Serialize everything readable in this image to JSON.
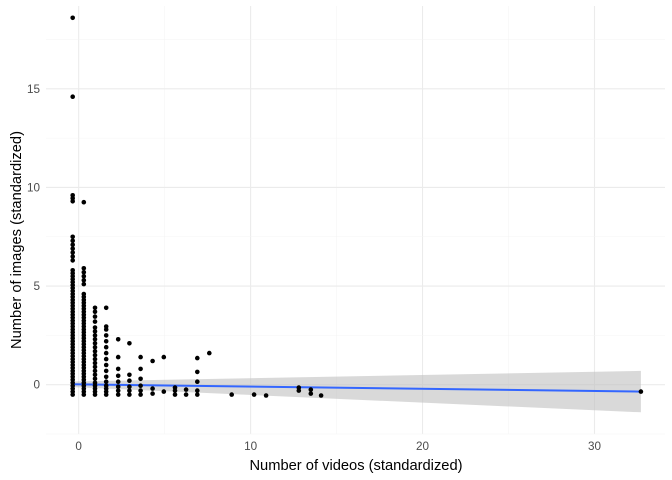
{
  "chart_data": {
    "type": "scatter",
    "title": "",
    "xlabel": "Number of videos (standardized)",
    "ylabel": "Number of images (standardized)",
    "xlim": [
      -1.9,
      34.1
    ],
    "ylim": [
      -2.5,
      19.2
    ],
    "x_ticks": [
      0,
      10,
      20,
      30
    ],
    "y_ticks": [
      0,
      5,
      10,
      15
    ],
    "grid": true,
    "legend": "none",
    "colors": {
      "points": "#000000",
      "fit_line": "#3366FF",
      "confidence_band": "#bfbfbf",
      "grid": "#ebebeb",
      "tick_labels": "#4d4d4d"
    },
    "columns": [
      {
        "x": -0.35,
        "y": [
          -0.5,
          -0.35,
          -0.2,
          -0.05,
          0.1,
          0.25,
          0.4,
          0.55,
          0.7,
          0.85,
          1.0,
          1.15,
          1.3,
          1.45,
          1.6,
          1.75,
          1.9,
          2.05,
          2.2,
          2.35,
          2.5,
          2.65,
          2.8,
          2.95,
          3.1,
          3.25,
          3.4,
          3.55,
          3.7,
          3.85,
          4.0,
          4.15,
          4.3,
          4.45,
          4.6,
          4.75,
          4.9,
          5.05,
          5.2,
          5.35,
          5.5,
          5.65,
          5.8,
          6.3,
          6.5,
          6.7,
          6.9,
          7.1,
          7.3,
          7.5,
          9.3,
          9.45,
          9.6,
          14.6,
          18.6
        ]
      },
      {
        "x": 0.3,
        "y": [
          -0.5,
          -0.35,
          -0.2,
          -0.05,
          0.1,
          0.25,
          0.4,
          0.55,
          0.7,
          0.85,
          1.0,
          1.15,
          1.3,
          1.45,
          1.6,
          1.75,
          1.9,
          2.05,
          2.2,
          2.35,
          2.5,
          2.65,
          2.8,
          2.95,
          3.1,
          3.25,
          3.4,
          3.55,
          3.7,
          3.85,
          4.0,
          4.15,
          4.3,
          4.45,
          4.6,
          5.1,
          5.3,
          5.5,
          5.7,
          5.9,
          9.25
        ]
      },
      {
        "x": 0.95,
        "y": [
          -0.5,
          -0.35,
          -0.2,
          -0.05,
          0.1,
          0.3,
          0.5,
          0.7,
          0.9,
          1.1,
          1.3,
          1.5,
          1.7,
          1.9,
          2.1,
          2.3,
          2.5,
          2.7,
          2.9,
          3.2,
          3.45,
          3.7,
          3.9
        ]
      },
      {
        "x": 1.6,
        "y": [
          -0.5,
          -0.35,
          -0.2,
          -0.05,
          0.15,
          0.4,
          0.7,
          1.0,
          1.3,
          1.6,
          1.9,
          2.2,
          2.5,
          2.8,
          2.95,
          3.9
        ]
      },
      {
        "x": 2.3,
        "y": [
          -0.5,
          -0.3,
          -0.1,
          0.15,
          0.45,
          0.8,
          1.4,
          2.3
        ]
      },
      {
        "x": 2.95,
        "y": [
          -0.5,
          -0.3,
          -0.1,
          0.2,
          0.5,
          2.1
        ]
      },
      {
        "x": 3.6,
        "y": [
          -0.5,
          -0.3,
          -0.05,
          0.3,
          0.8,
          1.4
        ]
      },
      {
        "x": 4.3,
        "y": [
          -0.45,
          -0.2,
          1.2
        ]
      },
      {
        "x": 4.95,
        "y": [
          -0.35,
          1.4
        ]
      },
      {
        "x": 5.6,
        "y": [
          -0.5,
          -0.3,
          -0.15
        ]
      },
      {
        "x": 6.25,
        "y": [
          -0.5,
          -0.25
        ]
      },
      {
        "x": 6.9,
        "y": [
          -0.5,
          -0.3,
          0.15,
          0.65,
          1.35
        ]
      },
      {
        "x": 7.6,
        "y": [
          1.6
        ]
      },
      {
        "x": 8.9,
        "y": [
          -0.5
        ]
      },
      {
        "x": 10.2,
        "y": [
          -0.5
        ]
      },
      {
        "x": 10.9,
        "y": [
          -0.55
        ]
      },
      {
        "x": 12.8,
        "y": [
          -0.3,
          -0.15
        ]
      },
      {
        "x": 13.5,
        "y": [
          -0.45,
          -0.25
        ]
      },
      {
        "x": 14.1,
        "y": [
          -0.55
        ]
      },
      {
        "x": 32.7,
        "y": [
          -0.35
        ]
      }
    ],
    "fit": {
      "x": [
        -0.35,
        32.7
      ],
      "y": [
        0.02,
        -0.35
      ],
      "ci_lower": [
        -0.12,
        -1.4
      ],
      "ci_upper": [
        0.16,
        0.7
      ]
    }
  }
}
